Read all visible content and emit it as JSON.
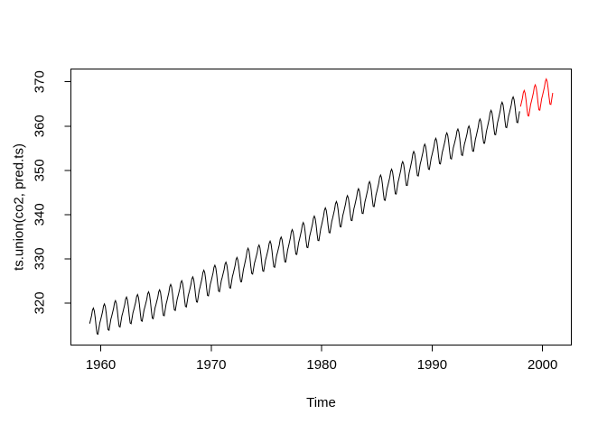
{
  "window": {
    "background": "#ffffff"
  },
  "chart_data": {
    "type": "line",
    "title": "",
    "xlabel": "Time",
    "ylabel": "ts.union(co2, pred.ts)",
    "x_ticks": [
      "1960",
      "1970",
      "1980",
      "1990",
      "2000"
    ],
    "y_ticks": [
      "320",
      "330",
      "340",
      "350",
      "360",
      "370"
    ],
    "xlim": [
      1957.3,
      2002.6
    ],
    "ylim": [
      310.5,
      372.9
    ],
    "grid": false,
    "frame": true,
    "legend": null,
    "axis_color": "#000000",
    "seasonal_pattern_monthly": [
      -0.2,
      0.6,
      1.4,
      2.6,
      3.0,
      2.3,
      0.7,
      -1.4,
      -3.1,
      -3.3,
      -2.1,
      -0.9
    ],
    "series": [
      {
        "name": "co2",
        "color": "#000000",
        "start_year": 1959,
        "frequency": 12,
        "annual_means": [
          315.97,
          316.91,
          317.64,
          318.45,
          318.99,
          319.62,
          320.04,
          321.38,
          322.16,
          323.04,
          324.62,
          325.68,
          326.32,
          327.45,
          329.68,
          330.18,
          331.11,
          332.04,
          333.83,
          335.4,
          336.84,
          338.75,
          340.11,
          341.45,
          343.05,
          344.65,
          346.12,
          347.42,
          349.19,
          351.57,
          353.12,
          354.39,
          355.61,
          356.45,
          357.1,
          358.83,
          360.82,
          362.61,
          363.73
        ]
      },
      {
        "name": "pred.ts",
        "color": "#FF0000",
        "start_year": 1998,
        "frequency": 12,
        "annual_means": [
          365.2,
          366.5,
          367.8
        ]
      }
    ]
  }
}
